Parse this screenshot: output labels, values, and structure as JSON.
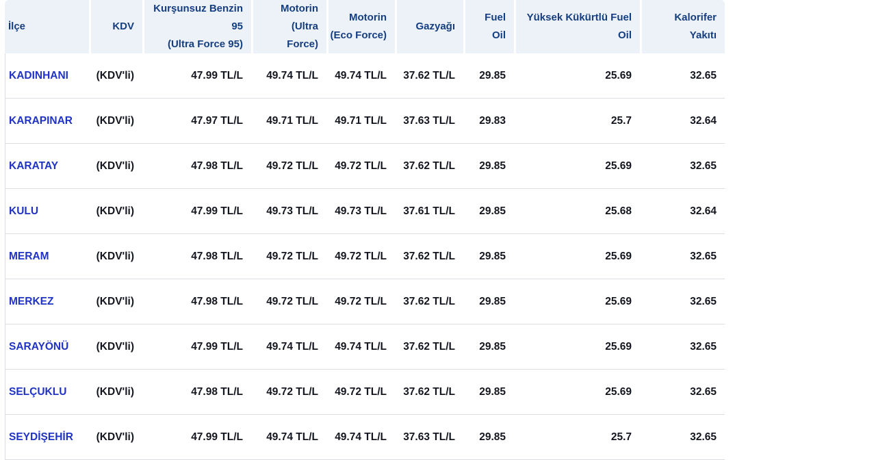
{
  "colors": {
    "header_bg": "#edf1f8",
    "header_text": "#153e80",
    "link_blue": "#1f33c4",
    "body_text": "#14161f",
    "divider": "#dcdce2",
    "page_bg": "#ffffff"
  },
  "table": {
    "columns": [
      {
        "key": "district",
        "label": "İlçe",
        "label_lines": [
          "İlçe"
        ]
      },
      {
        "key": "kdv",
        "label": "KDV",
        "label_lines": [
          "KDV"
        ]
      },
      {
        "key": "benzin95",
        "label": "Kurşunsuz Benzin 95 (Ultra Force 95)",
        "label_lines": [
          "Kurşunsuz Benzin",
          "95",
          "(Ultra Force 95)"
        ]
      },
      {
        "key": "motorin_ultra",
        "label": "Motorin (Ultra Force)",
        "label_lines": [
          "Motorin",
          "(Ultra",
          "Force)"
        ]
      },
      {
        "key": "motorin_eco",
        "label": "Motorin (Eco Force)",
        "label_lines": [
          "Motorin",
          "(Eco Force)"
        ]
      },
      {
        "key": "gazyagi",
        "label": "Gazyağı",
        "label_lines": [
          "Gazyağı"
        ]
      },
      {
        "key": "fuel_oil",
        "label": "Fuel Oil",
        "label_lines": [
          "Fuel",
          "Oil"
        ]
      },
      {
        "key": "yuksek_fuel_oil",
        "label": "Yüksek Kükürtlü Fuel Oil",
        "label_lines": [
          "Yüksek Kükürtlü Fuel",
          "Oil"
        ]
      },
      {
        "key": "kalorifer",
        "label": "Kalorifer Yakıtı",
        "label_lines": [
          "Kalorifer",
          "Yakıtı"
        ]
      }
    ],
    "rows": [
      {
        "district": "KADINHANI",
        "kdv": "(KDV'li)",
        "benzin95": "47.99 TL/L",
        "motorin_ultra": "49.74 TL/L",
        "motorin_eco": "49.74 TL/L",
        "gazyagi": "37.62 TL/L",
        "fuel_oil": "29.85",
        "yuksek_fuel_oil": "25.69",
        "kalorifer": "32.65"
      },
      {
        "district": "KARAPINAR",
        "kdv": "(KDV'li)",
        "benzin95": "47.97 TL/L",
        "motorin_ultra": "49.71 TL/L",
        "motorin_eco": "49.71 TL/L",
        "gazyagi": "37.63 TL/L",
        "fuel_oil": "29.83",
        "yuksek_fuel_oil": "25.7",
        "kalorifer": "32.64"
      },
      {
        "district": "KARATAY",
        "kdv": "(KDV'li)",
        "benzin95": "47.98 TL/L",
        "motorin_ultra": "49.72 TL/L",
        "motorin_eco": "49.72 TL/L",
        "gazyagi": "37.62 TL/L",
        "fuel_oil": "29.85",
        "yuksek_fuel_oil": "25.69",
        "kalorifer": "32.65"
      },
      {
        "district": "KULU",
        "kdv": "(KDV'li)",
        "benzin95": "47.99 TL/L",
        "motorin_ultra": "49.73 TL/L",
        "motorin_eco": "49.73 TL/L",
        "gazyagi": "37.61 TL/L",
        "fuel_oil": "29.85",
        "yuksek_fuel_oil": "25.68",
        "kalorifer": "32.64"
      },
      {
        "district": "MERAM",
        "kdv": "(KDV'li)",
        "benzin95": "47.98 TL/L",
        "motorin_ultra": "49.72 TL/L",
        "motorin_eco": "49.72 TL/L",
        "gazyagi": "37.62 TL/L",
        "fuel_oil": "29.85",
        "yuksek_fuel_oil": "25.69",
        "kalorifer": "32.65"
      },
      {
        "district": "MERKEZ",
        "kdv": "(KDV'li)",
        "benzin95": "47.98 TL/L",
        "motorin_ultra": "49.72 TL/L",
        "motorin_eco": "49.72 TL/L",
        "gazyagi": "37.62 TL/L",
        "fuel_oil": "29.85",
        "yuksek_fuel_oil": "25.69",
        "kalorifer": "32.65"
      },
      {
        "district": "SARAYÖNÜ",
        "kdv": "(KDV'li)",
        "benzin95": "47.99 TL/L",
        "motorin_ultra": "49.74 TL/L",
        "motorin_eco": "49.74 TL/L",
        "gazyagi": "37.62 TL/L",
        "fuel_oil": "29.85",
        "yuksek_fuel_oil": "25.69",
        "kalorifer": "32.65"
      },
      {
        "district": "SELÇUKLU",
        "kdv": "(KDV'li)",
        "benzin95": "47.98 TL/L",
        "motorin_ultra": "49.72 TL/L",
        "motorin_eco": "49.72 TL/L",
        "gazyagi": "37.62 TL/L",
        "fuel_oil": "29.85",
        "yuksek_fuel_oil": "25.69",
        "kalorifer": "32.65"
      },
      {
        "district": "SEYDİŞEHİR",
        "kdv": "(KDV'li)",
        "benzin95": "47.99 TL/L",
        "motorin_ultra": "49.74 TL/L",
        "motorin_eco": "49.74 TL/L",
        "gazyagi": "37.63 TL/L",
        "fuel_oil": "29.85",
        "yuksek_fuel_oil": "25.7",
        "kalorifer": "32.65"
      }
    ]
  }
}
